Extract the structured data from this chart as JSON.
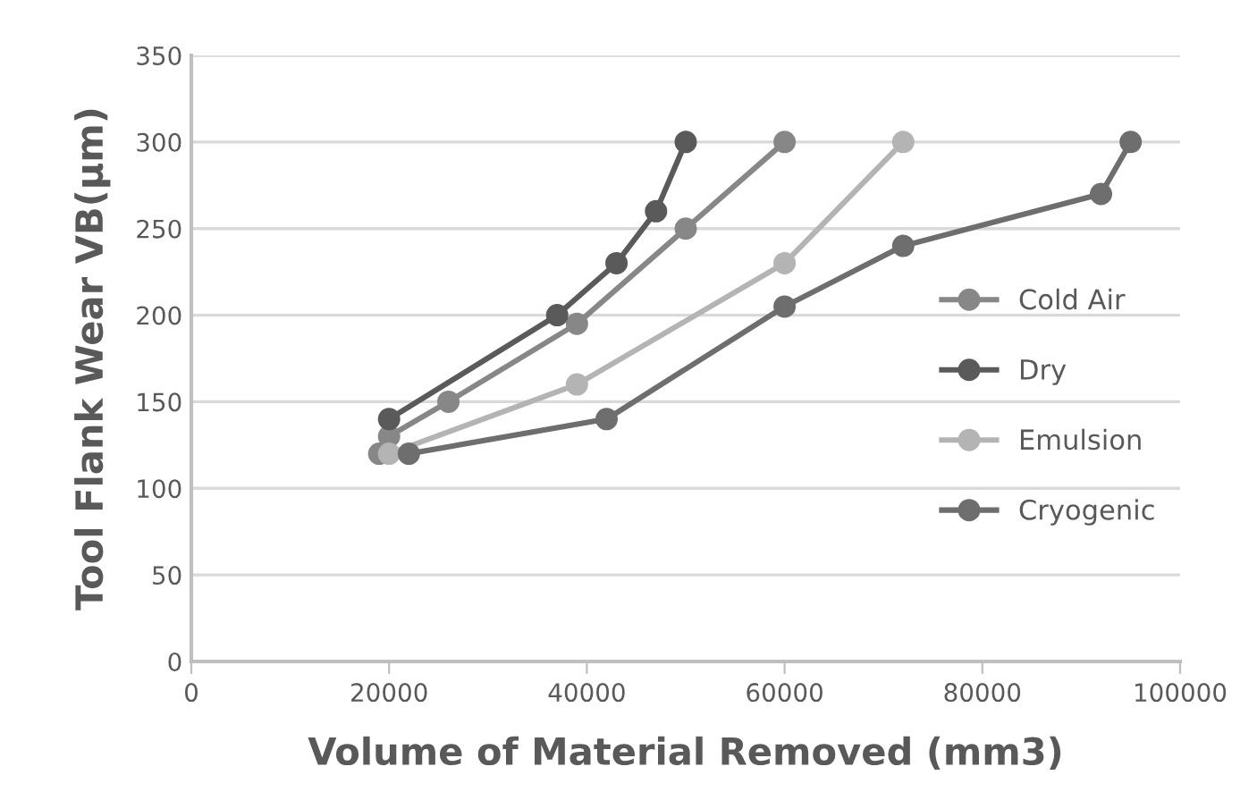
{
  "chart_data": {
    "type": "line",
    "xlabel": "Volume of Material Removed (mm3)",
    "ylabel": "Tool Flank Wear VB(μm)",
    "xlim": [
      0,
      100000
    ],
    "xticks": [
      0,
      20000,
      40000,
      60000,
      80000,
      100000
    ],
    "ylim": [
      0,
      350
    ],
    "yticks": [
      0,
      50,
      100,
      150,
      200,
      250,
      300,
      350
    ],
    "grid": "y",
    "legend": "right",
    "marker": "circle",
    "line_style": "solid",
    "series": [
      {
        "name": "Cold Air",
        "color": "#878787",
        "x": [
          19000,
          20000,
          26000,
          39000,
          50000,
          60000
        ],
        "values": [
          120,
          130,
          150,
          195,
          250,
          300
        ]
      },
      {
        "name": "Dry",
        "color": "#5a5a5a",
        "x": [
          20000,
          37000,
          43000,
          47000,
          50000
        ],
        "values": [
          140,
          200,
          230,
          260,
          300
        ]
      },
      {
        "name": "Emulsion",
        "color": "#b4b4b4",
        "x": [
          20000,
          39000,
          60000,
          72000
        ],
        "values": [
          120,
          160,
          230,
          300
        ]
      },
      {
        "name": "Cryogenic",
        "color": "#6e6e6e",
        "x": [
          22000,
          42000,
          60000,
          72000,
          92000,
          95000
        ],
        "values": [
          120,
          140,
          205,
          240,
          270,
          300
        ]
      }
    ]
  }
}
